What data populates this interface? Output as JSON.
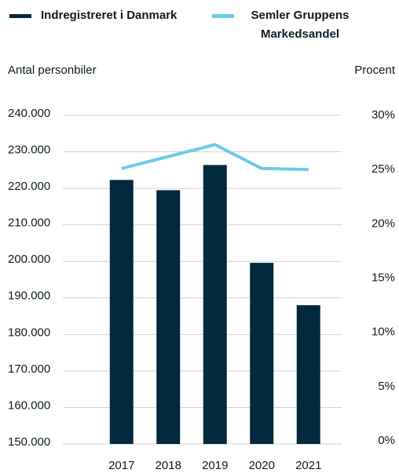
{
  "chart_data": {
    "type": "bar_line",
    "ylabel": "Antal personbiler",
    "y2label": "Procent",
    "categories": [
      "2017",
      "2018",
      "2019",
      "2020",
      "2021"
    ],
    "series": [
      {
        "name": "Indregistreret i Danmark",
        "color": "#022a3c",
        "type": "bar",
        "values": [
          222300,
          219500,
          226400,
          199600,
          188000
        ]
      },
      {
        "name": "Semler Gruppens Markedsandel",
        "color": "#6ccbe8",
        "type": "line",
        "axis": "y2",
        "values": [
          25.1,
          26.2,
          27.3,
          25.1,
          25.0
        ]
      }
    ],
    "ylim": [
      150000,
      240000
    ],
    "yticks": [
      {
        "value": 150000,
        "label": "150.000"
      },
      {
        "value": 160000,
        "label": "160.000"
      },
      {
        "value": 170000,
        "label": "170.000"
      },
      {
        "value": 180000,
        "label": "180.000"
      },
      {
        "value": 190000,
        "label": "190.000"
      },
      {
        "value": 200000,
        "label": "200.000"
      },
      {
        "value": 210000,
        "label": "210.000"
      },
      {
        "value": 220000,
        "label": "220.000"
      },
      {
        "value": 230000,
        "label": "230.000"
      },
      {
        "value": 240000,
        "label": "240.000"
      }
    ],
    "y2lim": [
      0,
      30
    ],
    "y2ticks": [
      {
        "value": 0,
        "label": "0%"
      },
      {
        "value": 5,
        "label": "5%"
      },
      {
        "value": 10,
        "label": "10%"
      },
      {
        "value": 15,
        "label": "15%"
      },
      {
        "value": 20,
        "label": "20%"
      },
      {
        "value": 25,
        "label": "25%"
      },
      {
        "value": 30,
        "label": "30%"
      }
    ],
    "grid": true
  }
}
